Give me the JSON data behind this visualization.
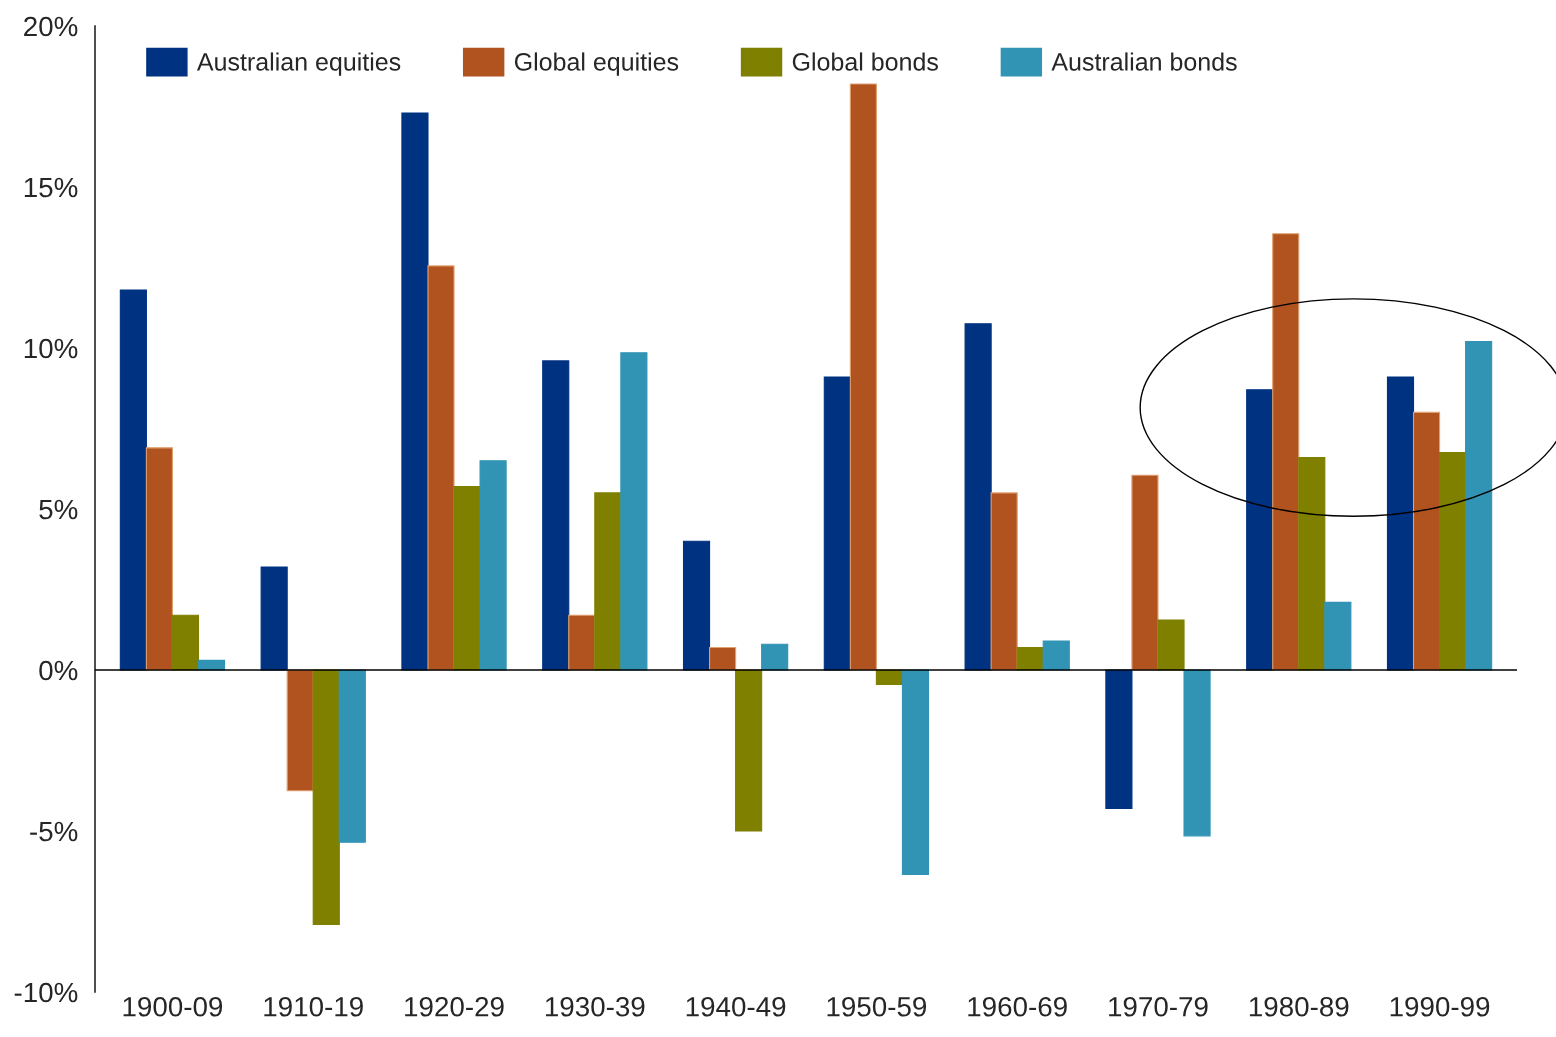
{
  "chart_data": {
    "type": "bar",
    "categories": [
      "1900-09",
      "1910-19",
      "1920-29",
      "1930-39",
      "1940-49",
      "1950-59",
      "1960-69",
      "1970-79",
      "1980-89",
      "1990-99"
    ],
    "series": [
      {
        "name": "Australian equities",
        "color": "#003282",
        "values": [
          11.8,
          3.2,
          17.3,
          9.6,
          4.0,
          9.1,
          10.75,
          -4.3,
          8.7,
          9.1
        ]
      },
      {
        "name": "Global equities",
        "color": "#b0531e",
        "values": [
          6.9,
          -3.75,
          12.55,
          1.7,
          0.7,
          18.2,
          5.5,
          6.05,
          13.55,
          8.0
        ]
      },
      {
        "name": "Global bonds",
        "color": "#7f7f00",
        "values": [
          1.7,
          -7.9,
          5.7,
          5.5,
          -5.0,
          -0.45,
          0.7,
          1.55,
          6.6,
          6.75
        ]
      },
      {
        "name": "Australian bonds",
        "color": "#3294b4",
        "values": [
          0.3,
          -5.35,
          6.5,
          9.85,
          0.8,
          -6.35,
          0.9,
          -5.15,
          2.1,
          10.2
        ]
      }
    ],
    "ylim": [
      -10,
      20
    ],
    "yticks": [
      {
        "value": -10,
        "label": "-10%"
      },
      {
        "value": -5,
        "label": "-5%"
      },
      {
        "value": 0,
        "label": "0%"
      },
      {
        "value": 5,
        "label": "5%"
      },
      {
        "value": 10,
        "label": "10%"
      },
      {
        "value": 15,
        "label": "15%"
      },
      {
        "value": 20,
        "label": "20%"
      }
    ],
    "ref_lines": [
      {
        "axis": "y",
        "value": 0,
        "color": "#000000"
      }
    ],
    "grid": false,
    "legend": "top"
  }
}
